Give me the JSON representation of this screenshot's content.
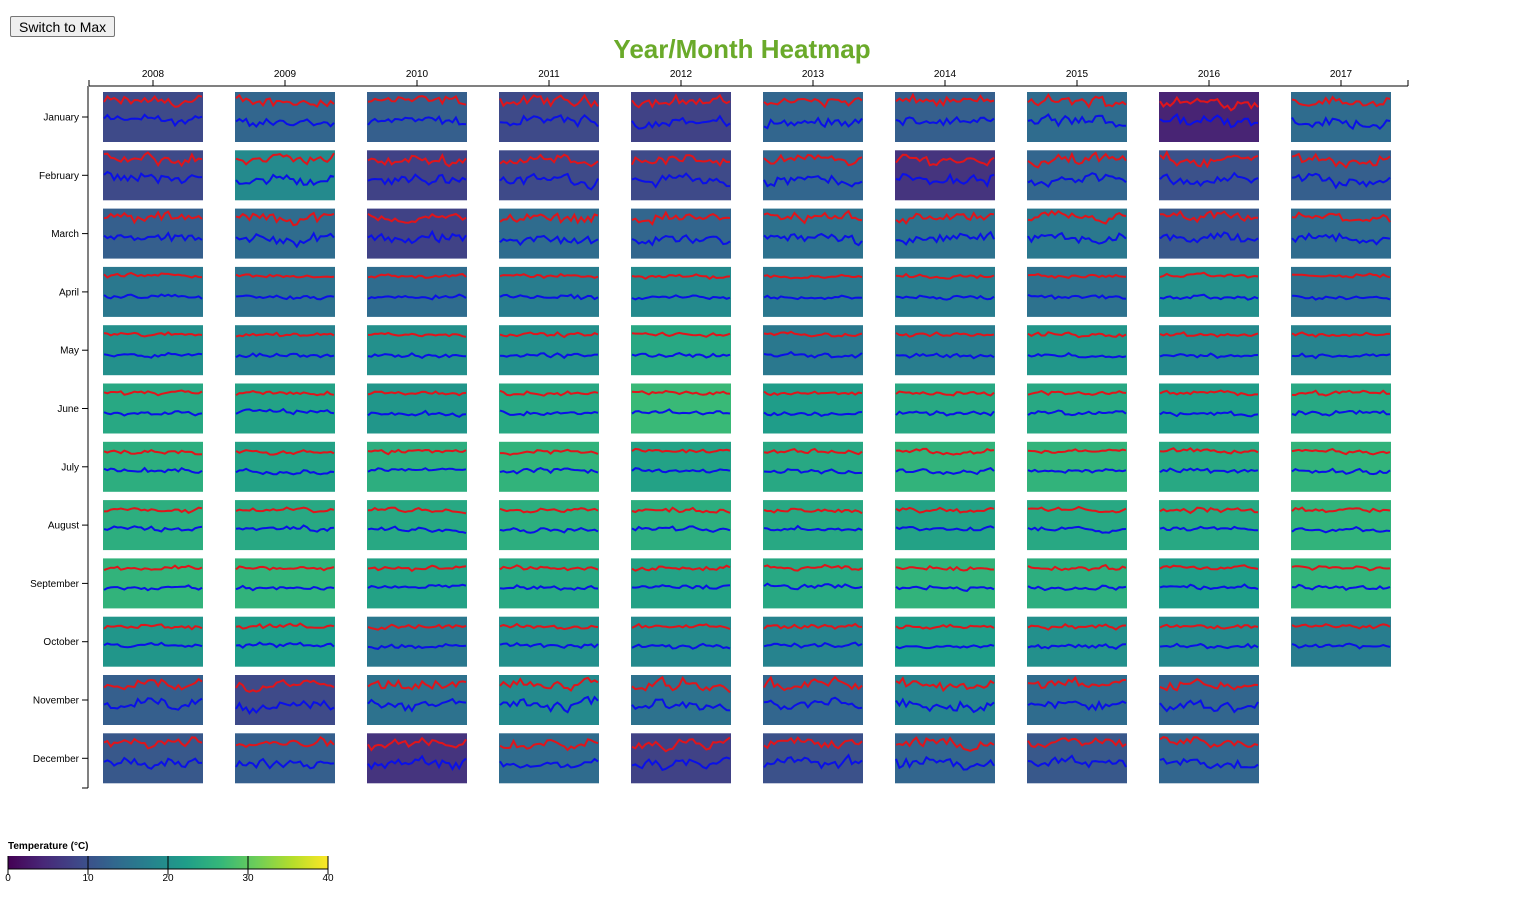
{
  "controls": {
    "switch_label": "Switch to Max"
  },
  "colors": {
    "max_line": "#e0151b",
    "min_line": "#0a10e8",
    "title": "#6aaa2a"
  },
  "chart_data": {
    "type": "heatmap",
    "title": "Year/Month Heatmap",
    "years": [
      "2008",
      "2009",
      "2010",
      "2011",
      "2012",
      "2013",
      "2014",
      "2015",
      "2016",
      "2017"
    ],
    "months": [
      "January",
      "February",
      "March",
      "April",
      "May",
      "June",
      "July",
      "August",
      "September",
      "October",
      "November",
      "December"
    ],
    "cell_value": "monthly mean temperature (°C)",
    "color_scale": "viridis",
    "legend": {
      "title": "Temperature (°C)",
      "domain": [
        0,
        40
      ],
      "ticks": [
        0,
        10,
        20,
        30,
        40
      ]
    },
    "series": [
      {
        "name": "max",
        "color": "#e0151b"
      },
      {
        "name": "min",
        "color": "#0a10e8"
      }
    ],
    "values": [
      [
        9,
        13,
        12,
        9,
        8,
        13,
        12,
        14,
        4,
        14
      ],
      [
        9,
        19,
        8,
        9,
        9,
        13,
        6,
        13,
        10,
        12
      ],
      [
        12,
        14,
        8,
        14,
        13,
        15,
        15,
        16,
        11,
        14
      ],
      [
        16,
        15,
        14,
        17,
        19,
        16,
        17,
        15,
        20,
        15
      ],
      [
        20,
        18,
        20,
        20,
        24,
        16,
        17,
        21,
        19,
        18
      ],
      [
        24,
        23,
        21,
        24,
        27,
        22,
        24,
        24,
        22,
        24
      ],
      [
        25,
        23,
        25,
        26,
        23,
        24,
        26,
        26,
        24,
        26
      ],
      [
        25,
        24,
        24,
        25,
        25,
        24,
        23,
        24,
        24,
        26
      ],
      [
        26,
        26,
        23,
        24,
        23,
        24,
        26,
        25,
        22,
        26
      ],
      [
        21,
        22,
        16,
        20,
        19,
        18,
        22,
        20,
        19,
        17
      ],
      [
        12,
        9,
        15,
        19,
        15,
        13,
        18,
        14,
        13,
        null
      ],
      [
        11,
        12,
        6,
        14,
        8,
        10,
        13,
        11,
        13,
        null
      ]
    ],
    "max_base": [
      [
        14,
        19,
        19,
        16,
        16,
        19,
        19,
        20,
        10,
        21
      ],
      [
        14,
        25,
        14,
        16,
        16,
        20,
        12,
        19,
        16,
        18
      ],
      [
        19,
        21,
        15,
        21,
        20,
        22,
        22,
        23,
        18,
        20
      ],
      [
        22,
        22,
        21,
        24,
        25,
        22,
        23,
        23,
        26,
        23
      ],
      [
        27,
        27,
        27,
        27,
        30,
        25,
        26,
        28,
        27,
        26
      ],
      [
        30,
        29,
        28,
        29,
        32,
        29,
        30,
        30,
        29,
        30
      ],
      [
        31,
        31,
        31,
        31,
        31,
        31,
        32,
        32,
        31,
        32
      ],
      [
        31,
        31,
        31,
        31,
        31,
        30,
        30,
        31,
        30,
        32
      ],
      [
        31,
        31,
        29,
        31,
        30,
        30,
        31,
        31,
        30,
        31
      ],
      [
        27,
        28,
        24,
        26,
        26,
        25,
        28,
        26,
        26,
        24
      ],
      [
        18,
        16,
        21,
        24,
        21,
        19,
        24,
        20,
        20,
        null
      ],
      [
        17,
        18,
        13,
        18,
        16,
        16,
        18,
        17,
        19,
        null
      ]
    ],
    "min_base": [
      [
        6,
        9,
        9,
        7,
        6,
        9,
        9,
        11,
        3,
        11
      ],
      [
        6,
        15,
        6,
        7,
        7,
        10,
        3,
        10,
        7,
        9
      ],
      [
        9,
        11,
        6,
        10,
        9,
        12,
        12,
        13,
        8,
        10
      ],
      [
        12,
        12,
        11,
        14,
        15,
        12,
        13,
        13,
        15,
        12
      ],
      [
        17,
        17,
        17,
        17,
        20,
        15,
        16,
        18,
        17,
        16
      ],
      [
        20,
        21,
        18,
        20,
        23,
        19,
        21,
        21,
        19,
        21
      ],
      [
        23,
        22,
        23,
        23,
        22,
        22,
        23,
        23,
        22,
        23
      ],
      [
        23,
        23,
        22,
        22,
        23,
        22,
        22,
        22,
        22,
        23
      ],
      [
        22,
        22,
        21,
        22,
        22,
        22,
        22,
        22,
        21,
        22
      ],
      [
        19,
        20,
        15,
        18,
        17,
        17,
        19,
        17,
        17,
        15
      ],
      [
        9,
        6,
        12,
        15,
        12,
        10,
        14,
        10,
        10,
        null
      ],
      [
        8,
        9,
        4,
        9,
        7,
        7,
        9,
        8,
        9,
        null
      ]
    ]
  }
}
